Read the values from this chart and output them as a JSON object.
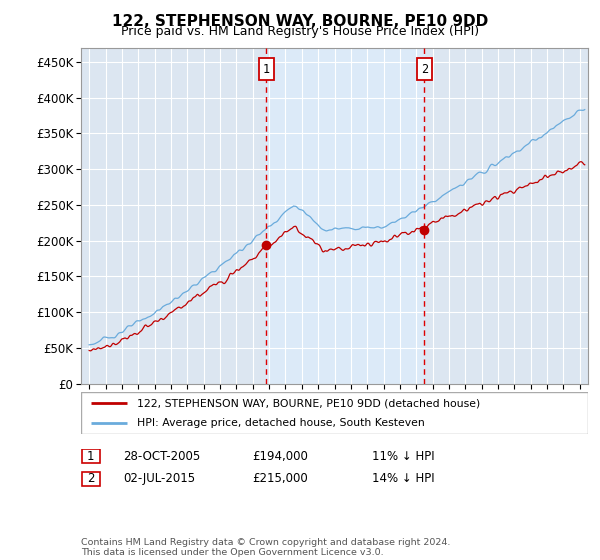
{
  "title": "122, STEPHENSON WAY, BOURNE, PE10 9DD",
  "subtitle": "Price paid vs. HM Land Registry's House Price Index (HPI)",
  "ylabel_ticks": [
    "£0",
    "£50K",
    "£100K",
    "£150K",
    "£200K",
    "£250K",
    "£300K",
    "£350K",
    "£400K",
    "£450K"
  ],
  "ylabel_values": [
    0,
    50000,
    100000,
    150000,
    200000,
    250000,
    300000,
    350000,
    400000,
    450000
  ],
  "ylim": [
    0,
    470000
  ],
  "xlim_start": 1994.5,
  "xlim_end": 2025.5,
  "purchase1_date": 2005.83,
  "purchase1_price": 194000,
  "purchase2_date": 2015.5,
  "purchase2_price": 215000,
  "hpi_color": "#6aabdc",
  "hpi_fill_color": "#ccdff0",
  "price_color": "#c00000",
  "vline_color": "#dd0000",
  "background_color": "#dce6f1",
  "grid_color": "#ffffff",
  "legend1": "122, STEPHENSON WAY, BOURNE, PE10 9DD (detached house)",
  "legend2": "HPI: Average price, detached house, South Kesteven",
  "annotation1_date": "28-OCT-2005",
  "annotation1_price": "£194,000",
  "annotation1_pct": "11% ↓ HPI",
  "annotation2_date": "02-JUL-2015",
  "annotation2_price": "£215,000",
  "annotation2_pct": "14% ↓ HPI",
  "footer": "Contains HM Land Registry data © Crown copyright and database right 2024.\nThis data is licensed under the Open Government Licence v3.0."
}
